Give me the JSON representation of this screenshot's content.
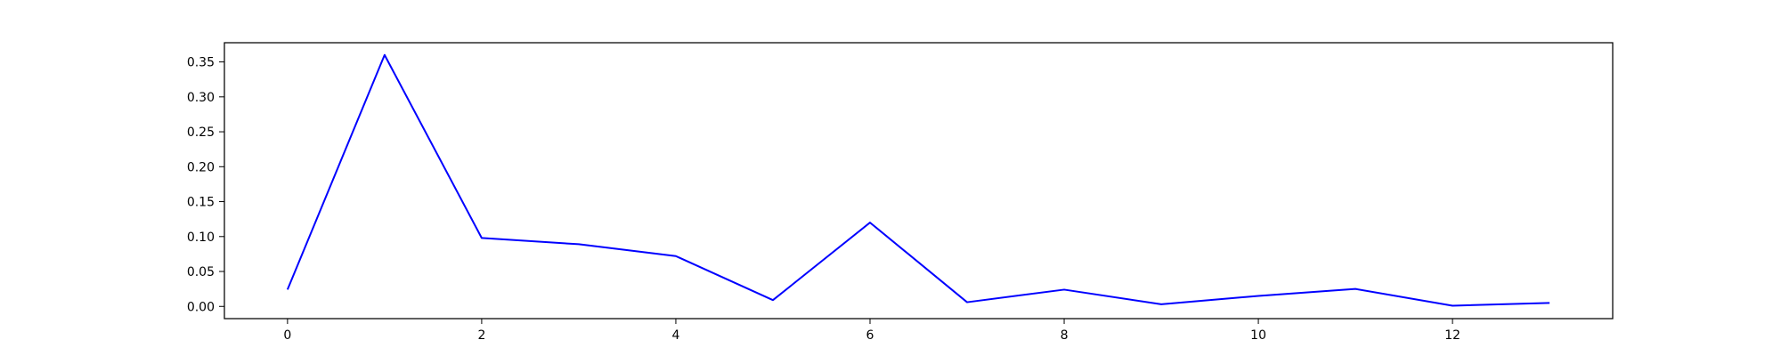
{
  "chart_data": {
    "type": "line",
    "title": "",
    "xlabel": "",
    "ylabel": "",
    "x": [
      0,
      1,
      2,
      3,
      4,
      5,
      6,
      7,
      8,
      9,
      10,
      11,
      12,
      13
    ],
    "series": [
      {
        "values": [
          0.024,
          0.36,
          0.098,
          0.089,
          0.072,
          0.009,
          0.12,
          0.006,
          0.024,
          0.003,
          0.015,
          0.025,
          0.001,
          0.005
        ],
        "color": "#0000ff"
      }
    ],
    "xlim": [
      -0.65,
      13.65
    ],
    "ylim": [
      -0.0175,
      0.3775
    ],
    "x_ticks": [
      0,
      2,
      4,
      6,
      8,
      10,
      12
    ],
    "x_tick_labels": [
      "0",
      "2",
      "4",
      "6",
      "8",
      "10",
      "12"
    ],
    "y_ticks": [
      0.0,
      0.05,
      0.1,
      0.15,
      0.2,
      0.25,
      0.3,
      0.35
    ],
    "y_tick_labels": [
      "0.00",
      "0.05",
      "0.10",
      "0.15",
      "0.20",
      "0.25",
      "0.30",
      "0.35"
    ],
    "grid": false,
    "legend": "none"
  }
}
